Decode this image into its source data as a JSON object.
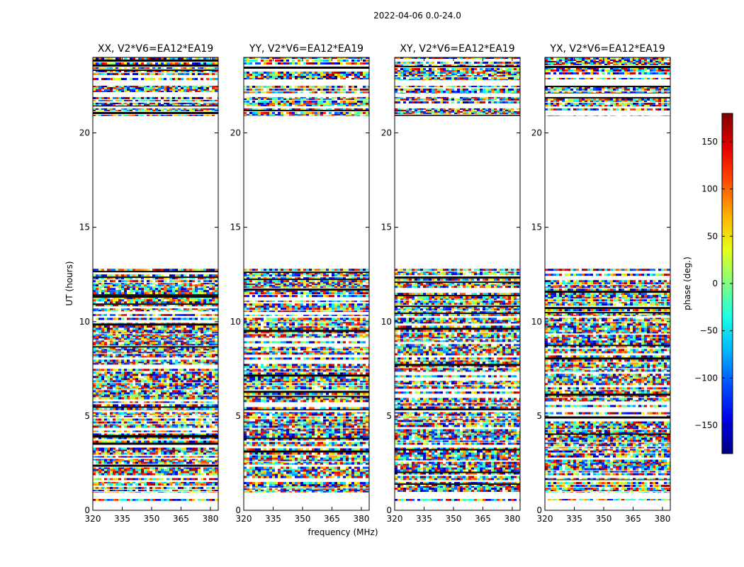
{
  "chart_data": {
    "type": "heatmap",
    "suptitle": "2022-04-06 0.0-24.0",
    "xlabel": "frequency (MHz)",
    "ylabel": "UT (hours)",
    "xlim": [
      320,
      384
    ],
    "ylim": [
      0,
      24
    ],
    "xticks": [
      320,
      335,
      350,
      365,
      380
    ],
    "yticks": [
      0,
      5,
      10,
      15,
      20
    ],
    "panels": [
      {
        "title": "XX, V2*V6=EA12*EA19",
        "pol": "XX"
      },
      {
        "title": "YY, V2*V6=EA12*EA19",
        "pol": "YY"
      },
      {
        "title": "XY, V2*V6=EA12*EA19",
        "pol": "XY"
      },
      {
        "title": "YX, V2*V6=EA12*EA19",
        "pol": "YX"
      }
    ],
    "colorbar": {
      "label": "phase (deg.)",
      "range": [
        -180,
        180
      ],
      "ticks": [
        -150,
        -100,
        -50,
        0,
        50,
        100,
        150
      ],
      "colormap": "jet"
    },
    "data_blocks_ut_hours": [
      [
        0.5,
        0.6
      ],
      [
        0.95,
        1.5
      ],
      [
        1.6,
        5.2
      ],
      [
        5.3,
        9.9
      ],
      [
        9.9,
        10.2
      ],
      [
        10.3,
        12.8
      ],
      [
        20.9,
        21.3
      ],
      [
        21.4,
        21.9
      ],
      [
        22.1,
        22.5
      ],
      [
        22.8,
        24.0
      ]
    ],
    "gaps_ut_hours": [
      [
        12.8,
        20.9
      ]
    ],
    "colors": {
      "frame": "#000000",
      "background": "#ffffff"
    }
  }
}
